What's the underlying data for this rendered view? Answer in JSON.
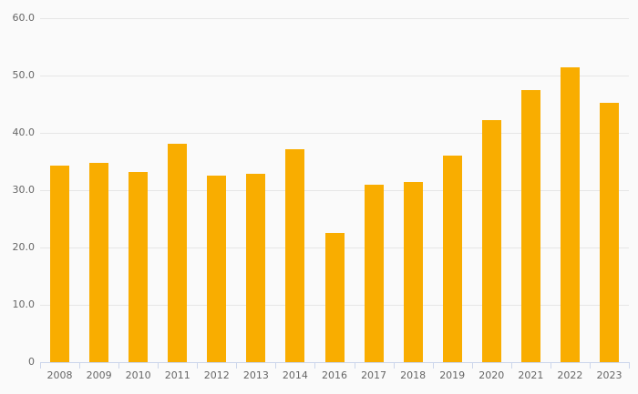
{
  "chart_data": {
    "type": "bar",
    "title": "",
    "xlabel": "",
    "ylabel": "",
    "categories": [
      "2008",
      "2009",
      "2010",
      "2011",
      "2012",
      "2013",
      "2014",
      "2016",
      "2017",
      "2018",
      "2019",
      "2020",
      "2021",
      "2022",
      "2023"
    ],
    "values": [
      34.3,
      34.8,
      33.2,
      38.1,
      32.6,
      32.9,
      37.1,
      22.6,
      31.0,
      31.4,
      36.1,
      42.3,
      47.5,
      51.5,
      45.3
    ],
    "ylim": [
      0,
      60
    ],
    "ytick_interval": 10,
    "ytick_labels": [
      "0",
      "10.0",
      "20.0",
      "30.0",
      "40.0",
      "50.0",
      "60.0"
    ],
    "grid": true,
    "legend_position": "none",
    "colors": {
      "bar": "#F9AD00",
      "background": "#FAFAFA",
      "gridline": "#E6E6E6",
      "axis_line": "#CCD6EB",
      "label": "#666666"
    }
  }
}
